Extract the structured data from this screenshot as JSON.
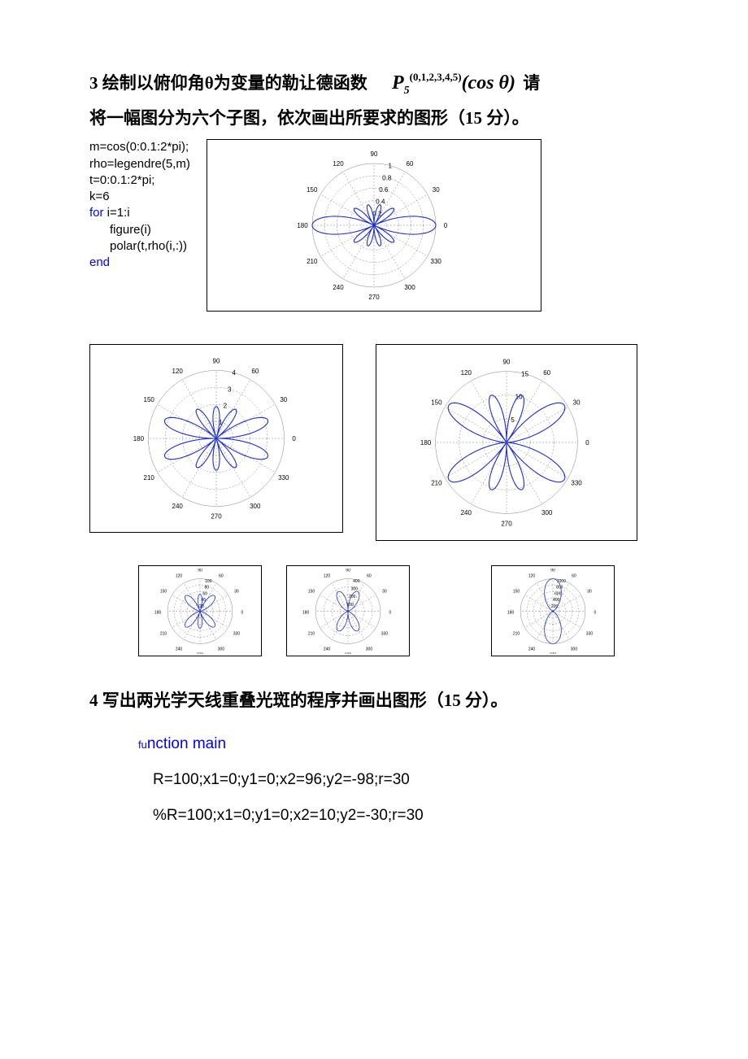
{
  "q3": {
    "heading_prefix": "3 绘制以俯仰角θ为变量的勒让德函数",
    "formula": {
      "base": "P",
      "sub": "5",
      "sup": "(0,1,2,3,4,5)",
      "arg": "(cos θ)"
    },
    "heading_suffix": "请",
    "heading_line2": "将一幅图分为六个子图，依次画出所要求的图形（15 分）。",
    "code": {
      "l1": "m=cos(0:0.1:2*pi);",
      "l2": "rho=legendre(5,m)",
      "l3": "t=0:0.1:2*pi;",
      "l4": "k=6",
      "l5_kw": "for",
      "l5_rest": " i=1:i",
      "l6": "      figure(i)",
      "l7": "      polar(t,rho(i,:))",
      "l8_kw": "end"
    }
  },
  "polar_common": {
    "angle_labels": [
      "0",
      "30",
      "60",
      "90",
      "120",
      "150",
      "180",
      "210",
      "240",
      "270",
      "300",
      "330"
    ],
    "grid_color": "#808080",
    "curve_color": "#1f2fd0",
    "bg": "#ffffff",
    "label_font": 8
  },
  "chart1": {
    "radial_labels": [
      "0.2",
      "0.4",
      "0.6",
      "0.8",
      "1"
    ],
    "petals": 5,
    "dominant_angle": 0
  },
  "chart2": {
    "radial_labels": [
      "1",
      "2",
      "3",
      "4"
    ],
    "petals": 10,
    "dominant_angle": 90
  },
  "chart3": {
    "radial_labels": [
      "5",
      "10",
      "15"
    ],
    "petals": 4,
    "dominant_angle": 60
  },
  "chart4": {
    "radial_labels": [
      "20",
      "40",
      "60",
      "80",
      "100"
    ],
    "petals": 6
  },
  "chart5": {
    "radial_labels": [
      "100",
      "200",
      "300",
      "400"
    ],
    "petals": 4
  },
  "chart6": {
    "radial_labels": [
      "200",
      "400",
      "600",
      "800",
      "1000"
    ],
    "petals": 2,
    "vertical": true
  },
  "q4": {
    "heading": "4 写出两光学天线重叠光斑的程序并画出图形（15 分）。",
    "l1_kw": "fu",
    "l1_rest": "nction main",
    "l2": "R=100;x1=0;y1=0;x2=96;y2=-98;r=30",
    "l3": "%R=100;x1=0;y1=0;x2=10;y2=-30;r=30"
  }
}
